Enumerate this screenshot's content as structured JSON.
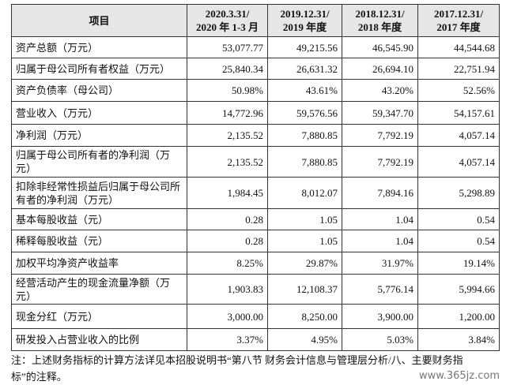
{
  "table": {
    "header": [
      "项目",
      [
        "2020.3.31/",
        "2020 年 1-3 月"
      ],
      [
        "2019.12.31/",
        "2019 年度"
      ],
      [
        "2018.12.31/",
        "2018 年度"
      ],
      [
        "2017.12.31/",
        "2017 年度"
      ]
    ],
    "rows": [
      [
        "资产总额（万元）",
        "53,077.77",
        "49,215.56",
        "46,545.90",
        "44,544.68"
      ],
      [
        "归属于母公司所有者权益（万元）",
        "25,840.34",
        "26,631.32",
        "26,694.10",
        "22,751.94"
      ],
      [
        "资产负债率（母公司）",
        "50.98%",
        "43.61%",
        "43.20%",
        "52.56%"
      ],
      [
        "营业收入（万元）",
        "14,772.96",
        "59,576.56",
        "59,347.70",
        "54,157.61"
      ],
      [
        "净利润（万元）",
        "2,135.52",
        "7,880.85",
        "7,792.19",
        "4,057.14"
      ],
      [
        "归属于母公司所有者的净利润（万元）",
        "2,135.52",
        "7,880.85",
        "7,792.19",
        "4,057.14"
      ],
      [
        "扣除非经常性损益后归属于母公司所有者的净利润（万元）",
        "1,984.45",
        "8,012.07",
        "7,894.16",
        "5,298.89"
      ],
      [
        "基本每股收益（元）",
        "0.28",
        "1.05",
        "1.04",
        "0.54"
      ],
      [
        "稀释每股收益（元）",
        "0.28",
        "1.05",
        "1.04",
        "0.54"
      ],
      [
        "加权平均净资产收益率",
        "8.25%",
        "29.87%",
        "31.97%",
        "19.14%"
      ],
      [
        "经营活动产生的现金流量净额（万元）",
        "1,903.83",
        "12,108.37",
        "5,776.14",
        "5,994.66"
      ],
      [
        "现金分红（万元）",
        "3,000.00",
        "8,250.00",
        "3,900.00",
        "1,200.00"
      ],
      [
        "研发投入占营业收入的比例",
        "3.37%",
        "4.95%",
        "5.03%",
        "3.84%"
      ]
    ]
  },
  "note": "注：上述财务指标的计算方法详见本招股说明书“第八节 财务会计信息与管理层分析/八、主要财务指标”的注释。",
  "watermark": "www.365jz.com"
}
